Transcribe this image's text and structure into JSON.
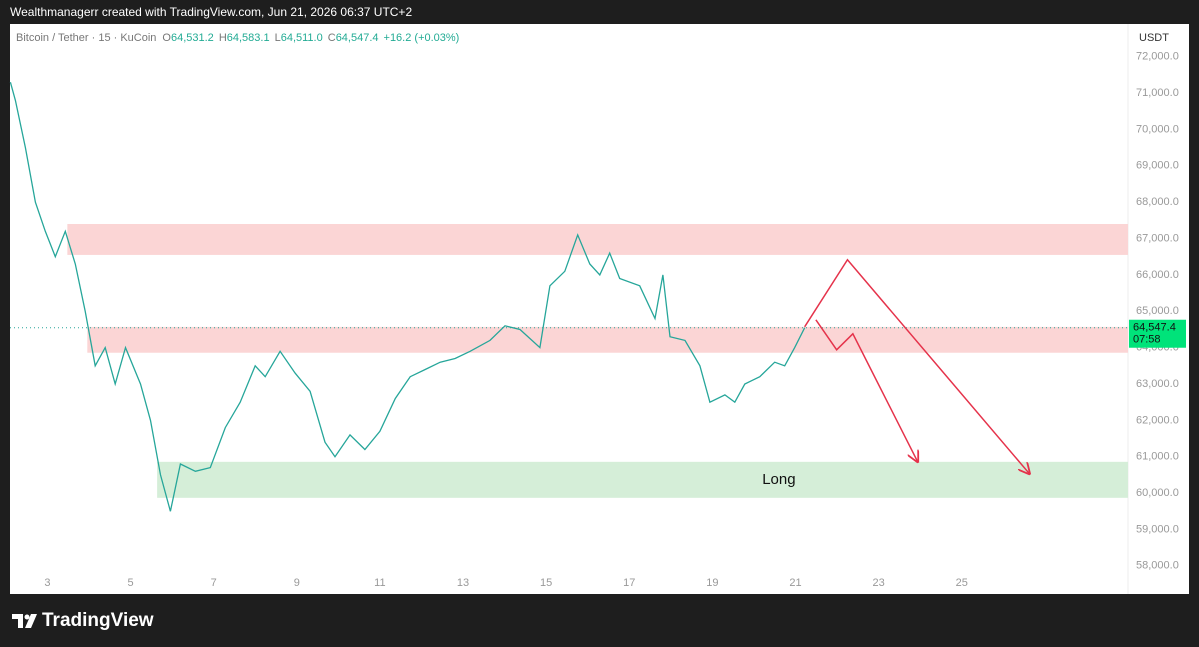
{
  "header": {
    "credit": "Wealthmanagerr created with TradingView.com, Jun 21, 2026 06:37 UTC+2"
  },
  "footer": {
    "brand": "TradingView"
  },
  "chart_data": {
    "type": "line",
    "title": "Bitcoin / Tether · 15 · KuCoin",
    "ohlc": [
      {
        "label": "O",
        "value": "64,531.2"
      },
      {
        "label": "H",
        "value": "64,583.1"
      },
      {
        "label": "L",
        "value": "64,511.0"
      },
      {
        "label": "C",
        "value": "64,547.4"
      }
    ],
    "change": "+16.2 (+0.03%)",
    "currency": "USDT",
    "color": "#26a69a",
    "x": [
      2.11,
      2.23,
      2.47,
      2.71,
      2.95,
      3.19,
      3.43,
      3.67,
      3.91,
      4.15,
      4.39,
      4.63,
      4.88,
      5.24,
      5.48,
      5.72,
      5.96,
      6.2,
      6.56,
      6.92,
      7.28,
      7.64,
      8.0,
      8.24,
      8.6,
      8.96,
      9.32,
      9.68,
      9.92,
      10.28,
      10.64,
      11.0,
      11.37,
      11.73,
      12.09,
      12.45,
      12.81,
      13.17,
      13.65,
      14.01,
      14.37,
      14.85,
      15.09,
      15.45,
      15.76,
      16.05,
      16.29,
      16.53,
      16.77,
      17.25,
      17.62,
      17.81,
      17.98,
      18.34,
      18.7,
      18.94,
      19.3,
      19.54,
      19.78,
      20.14,
      20.5,
      20.74,
      20.98,
      21.22
    ],
    "values": [
      71300,
      70800,
      69500,
      68000,
      67200,
      66500,
      67200,
      66300,
      65000,
      63500,
      64000,
      63000,
      64000,
      63000,
      62000,
      60500,
      59500,
      60800,
      60600,
      60700,
      61800,
      62500,
      63500,
      63200,
      63900,
      63300,
      62800,
      61400,
      61000,
      61600,
      61200,
      61700,
      62600,
      63200,
      63400,
      63600,
      63700,
      63900,
      64200,
      64600,
      64500,
      64000,
      65700,
      66100,
      67100,
      66300,
      66000,
      66600,
      65900,
      65700,
      64800,
      66000,
      64300,
      64200,
      63500,
      62500,
      62700,
      62500,
      63000,
      63200,
      63600,
      63500,
      64000,
      64547.4
    ],
    "xlim": [
      2.1,
      29
    ],
    "xticks": [
      3,
      5,
      7,
      9,
      11,
      13,
      15,
      17,
      19,
      21,
      23,
      25
    ],
    "ylim": [
      57500,
      72900
    ],
    "yticks": [
      {
        "value": 58000,
        "label": "58,000.0"
      },
      {
        "value": 59000,
        "label": "59,000.0"
      },
      {
        "value": 60000,
        "label": "60,000.0"
      },
      {
        "value": 61000,
        "label": "61,000.0"
      },
      {
        "value": 62000,
        "label": "62,000.0"
      },
      {
        "value": 63000,
        "label": "63,000.0"
      },
      {
        "value": 64000,
        "label": "64,000.0"
      },
      {
        "value": 65000,
        "label": "65,000.0"
      },
      {
        "value": 66000,
        "label": "66,000.0"
      },
      {
        "value": 67000,
        "label": "67,000.0"
      },
      {
        "value": 68000,
        "label": "68,000.0"
      },
      {
        "value": 69000,
        "label": "69,000.0"
      },
      {
        "value": 70000,
        "label": "70,000.0"
      },
      {
        "value": 71000,
        "label": "71,000.0"
      },
      {
        "value": 72000,
        "label": "72,000.0"
      }
    ],
    "last_price": {
      "value": 64547.4,
      "label": "64,547.4",
      "countdown": "07:58"
    },
    "zones": [
      {
        "x0": 3.48,
        "y0": 66550,
        "y1": 67400,
        "color": "#fbd5d5"
      },
      {
        "x0": 3.96,
        "y0": 63860,
        "y1": 64570,
        "color": "#fbd5d5"
      },
      {
        "x0": 5.64,
        "y0": 59870,
        "y1": 60860,
        "color": "#d5eed8",
        "label": "Long",
        "label_x": 20.6
      }
    ],
    "arrows": [
      {
        "color": "#e5334b",
        "x": [
          21.22,
          22.25,
          26.63
        ],
        "y": [
          64573,
          66416,
          60530
        ]
      },
      {
        "color": "#e5334b",
        "x": [
          21.49,
          21.99,
          22.38,
          23.94
        ],
        "y": [
          64766,
          63941,
          64381,
          60860
        ]
      }
    ]
  }
}
